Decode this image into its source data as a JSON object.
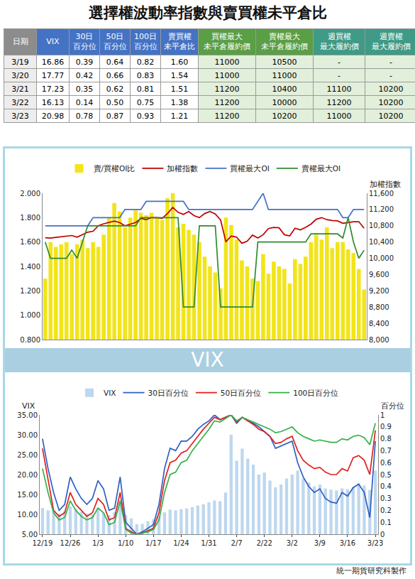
{
  "header": {
    "title": "選擇權波動率指數與賣買權未平倉比"
  },
  "table": {
    "columns": [
      [
        "日期"
      ],
      [
        "VIX"
      ],
      [
        "30日",
        "百分位"
      ],
      [
        "50日",
        "百分位"
      ],
      [
        "100日",
        "百分位"
      ],
      [
        "賣買權",
        "未平倉比"
      ],
      [
        "買權最大",
        "未平倉履約價"
      ],
      [
        "賣權最大",
        "未平倉履約價"
      ],
      [
        "週買權",
        "最大履約價"
      ],
      [
        "週賣權",
        "最大履約價"
      ]
    ],
    "rows": [
      [
        "3/19",
        "16.86",
        "0.39",
        "0.64",
        "0.82",
        "1.60",
        "11000",
        "10500",
        "-",
        "-"
      ],
      [
        "3/20",
        "17.77",
        "0.42",
        "0.66",
        "0.83",
        "1.54",
        "11000",
        "11000",
        "-",
        "-"
      ],
      [
        "3/21",
        "17.23",
        "0.35",
        "0.62",
        "0.81",
        "1.51",
        "11200",
        "10400",
        "11100",
        "10200"
      ],
      [
        "3/22",
        "16.13",
        "0.14",
        "0.50",
        "0.75",
        "1.38",
        "11200",
        "10000",
        "11200",
        "10200"
      ],
      [
        "3/23",
        "20.98",
        "0.78",
        "0.87",
        "0.93",
        "1.21",
        "11200",
        "10200",
        "11000",
        "10200"
      ]
    ]
  },
  "banner": "VIX",
  "footer": "統一期貨研究科製作",
  "chart_data": [
    {
      "type": "bar",
      "categories": [
        null,
        null,
        null,
        null,
        null,
        null,
        null,
        null,
        null,
        null,
        null,
        null,
        null,
        null,
        null,
        null,
        null,
        null,
        null,
        null,
        null,
        null,
        null,
        null,
        null,
        null,
        null,
        null,
        null,
        null,
        null,
        null,
        null,
        null,
        null,
        null,
        null,
        null,
        null,
        null,
        null,
        null,
        null,
        null,
        null,
        null,
        null,
        null,
        null,
        null,
        null,
        null,
        null,
        null,
        null,
        null,
        null,
        null,
        null,
        null,
        null
      ],
      "series": [
        {
          "name": "賣/買權OI比",
          "type": "bar",
          "color": "#f2e41a",
          "values": [
            1.3,
            1.6,
            1.56,
            1.58,
            1.6,
            1.5,
            1.58,
            1.62,
            1.55,
            1.6,
            1.56,
            1.66,
            1.8,
            1.92,
            1.85,
            1.72,
            1.8,
            1.86,
            1.84,
            1.82,
            1.84,
            1.8,
            1.78,
            1.96,
            2.0,
            1.72,
            1.75,
            1.7,
            1.66,
            1.6,
            1.48,
            1.4,
            1.35,
            1.22,
            1.8,
            1.74,
            1.62,
            1.45,
            1.4,
            1.3,
            1.28,
            1.5,
            1.34,
            1.44,
            1.4,
            1.38,
            1.26,
            1.46,
            1.42,
            1.48,
            1.6,
            1.66,
            1.62,
            1.72,
            1.55,
            1.6,
            1.6,
            1.54,
            1.51,
            1.38,
            1.21
          ]
        },
        {
          "name": "加權指數",
          "type": "line",
          "axis": "y2",
          "color": "#c00000",
          "values": [
            10506,
            10498,
            10515,
            10526,
            10550,
            10560,
            10520,
            10580,
            10642,
            10665,
            10801,
            10848,
            10879,
            10916,
            10879,
            10800,
            10840,
            10880,
            10980,
            10950,
            11000,
            11000,
            10982,
            11100,
            11253,
            11130,
            11080,
            11150,
            11050,
            11000,
            11100,
            11150,
            11090,
            10940,
            10404,
            10550,
            10520,
            10370,
            10420,
            10570,
            10500,
            10580,
            10730,
            10760,
            10750,
            10580,
            10550,
            10740,
            10700,
            10760,
            10840,
            10960,
            11000,
            10950,
            10930,
            10920,
            10860,
            10880,
            10900,
            10900,
            10740
          ]
        },
        {
          "name": "買權最大OI",
          "type": "line",
          "axis": "y2",
          "color": "#4472c4",
          "values": [
            10800,
            10800,
            10800,
            10800,
            10800,
            10800,
            10800,
            10800,
            10800,
            11000,
            11000,
            11000,
            11000,
            11000,
            11000,
            11200,
            11200,
            11200,
            11200,
            11400,
            11400,
            11400,
            11400,
            11400,
            11400,
            11400,
            11400,
            11200,
            11200,
            11200,
            11200,
            11200,
            11200,
            11200,
            11200,
            11200,
            11200,
            11200,
            11200,
            11200,
            11400,
            11600,
            11200,
            11200,
            11200,
            11200,
            11200,
            11200,
            11200,
            11200,
            11200,
            11200,
            11200,
            11200,
            11200,
            11200,
            11000,
            11000,
            11200,
            11200,
            11200
          ]
        },
        {
          "name": "賣權最大OI",
          "type": "line",
          "axis": "y2",
          "color": "#2e8b2e",
          "values": [
            10400,
            10000,
            10000,
            10000,
            10000,
            10200,
            10000,
            10400,
            10800,
            10800,
            10800,
            10800,
            10800,
            10800,
            10800,
            10800,
            10800,
            10800,
            11000,
            11000,
            11000,
            11000,
            11000,
            11000,
            11000,
            11000,
            8800,
            8800,
            8800,
            10800,
            10800,
            10800,
            10800,
            8800,
            8800,
            8800,
            8800,
            8800,
            8800,
            8800,
            10400,
            10400,
            10400,
            10400,
            10400,
            10400,
            10400,
            10400,
            10400,
            10400,
            10600,
            10600,
            10600,
            10600,
            10600,
            10600,
            10500,
            11000,
            10400,
            10000,
            10200
          ]
        }
      ],
      "ylim": [
        0.8,
        2.0
      ],
      "yticks": [
        {
          "value": 0.8,
          "label": "0.800"
        },
        {
          "value": 1.0,
          "label": "1.000"
        },
        {
          "value": 1.2,
          "label": "1.200"
        },
        {
          "value": 1.4,
          "label": "1.400"
        },
        {
          "value": 1.6,
          "label": "1.600"
        },
        {
          "value": 1.8,
          "label": "1.800"
        },
        {
          "value": 2.0,
          "label": "2.000"
        }
      ],
      "y2lim": [
        8000,
        11600
      ],
      "y2ticks": [
        {
          "value": 8000,
          "label": "8,000"
        },
        {
          "value": 8400,
          "label": "8,400"
        },
        {
          "value": 8800,
          "label": "8,800"
        },
        {
          "value": 9200,
          "label": "9,200"
        },
        {
          "value": 9600,
          "label": "9,600"
        },
        {
          "value": 10000,
          "label": "10,000"
        },
        {
          "value": 10400,
          "label": "10,400"
        },
        {
          "value": 10800,
          "label": "10,800"
        },
        {
          "value": 11200,
          "label": "11,200"
        },
        {
          "value": 11600,
          "label": "11,600"
        }
      ],
      "y2_label": "加權指數",
      "legend": "top",
      "grid": false
    },
    {
      "type": "bar",
      "categories": [
        "12/19",
        null,
        null,
        null,
        null,
        "12/26",
        null,
        null,
        null,
        null,
        "1/3",
        null,
        null,
        null,
        null,
        "1/10",
        null,
        null,
        null,
        null,
        "1/17",
        null,
        null,
        null,
        null,
        "1/24",
        null,
        null,
        null,
        null,
        "1/31",
        null,
        null,
        null,
        null,
        "2/7",
        null,
        null,
        null,
        null,
        "2/22",
        null,
        null,
        null,
        null,
        "3/2",
        null,
        null,
        null,
        null,
        "3/9",
        null,
        null,
        null,
        null,
        "3/16",
        null,
        null,
        null,
        null,
        "3/23"
      ],
      "series": [
        {
          "name": "VIX",
          "type": "bar",
          "color": "#bdd7ee",
          "values": [
            11.6,
            11.0,
            10.5,
            10.2,
            10.8,
            12.0,
            11.4,
            10.6,
            10.2,
            10.0,
            11.5,
            10.4,
            9.8,
            10.6,
            13.0,
            9.8,
            9.0,
            7.5,
            7.6,
            8.3,
            8.8,
            9.5,
            10.5,
            11.2,
            11.0,
            11.3,
            11.5,
            11.8,
            12.2,
            12.5,
            13.0,
            13.5,
            13.3,
            15.5,
            30.0,
            23.5,
            26.5,
            24.0,
            22.5,
            20.0,
            20.5,
            18.5,
            16.8,
            17.5,
            19.0,
            20.0,
            21.0,
            19.0,
            18.0,
            17.0,
            17.5,
            16.5,
            16.2,
            16.0,
            16.5,
            16.3,
            16.86,
            17.77,
            17.23,
            16.13,
            20.98
          ]
        },
        {
          "name": "30日百分位",
          "type": "line",
          "axis": "y2",
          "color": "#2f5fc4",
          "values": [
            0.8,
            0.55,
            0.35,
            0.2,
            0.25,
            0.48,
            0.38,
            0.3,
            0.25,
            0.3,
            0.45,
            0.38,
            0.2,
            0.22,
            0.48,
            0.1,
            0.05,
            0.0,
            0.02,
            0.05,
            0.08,
            0.25,
            0.55,
            0.72,
            0.7,
            0.78,
            0.78,
            0.82,
            0.88,
            0.92,
            0.95,
            1.0,
            0.96,
            0.98,
            1.0,
            0.93,
            0.98,
            0.95,
            0.93,
            0.9,
            0.86,
            0.82,
            0.72,
            0.74,
            0.76,
            0.78,
            0.6,
            0.48,
            0.4,
            0.35,
            0.38,
            0.3,
            0.27,
            0.26,
            0.35,
            0.32,
            0.39,
            0.42,
            0.35,
            0.14,
            0.78
          ]
        },
        {
          "name": "50日百分位",
          "type": "line",
          "axis": "y2",
          "color": "#e02020",
          "values": [
            0.72,
            0.45,
            0.2,
            0.15,
            0.18,
            0.35,
            0.25,
            0.2,
            0.15,
            0.18,
            0.3,
            0.25,
            0.12,
            0.14,
            0.35,
            0.05,
            0.02,
            0.0,
            0.01,
            0.03,
            0.05,
            0.18,
            0.45,
            0.6,
            0.62,
            0.68,
            0.7,
            0.76,
            0.82,
            0.88,
            0.93,
            0.98,
            0.96,
            0.98,
            1.0,
            0.94,
            0.98,
            0.95,
            0.92,
            0.88,
            0.86,
            0.82,
            0.76,
            0.77,
            0.8,
            0.82,
            0.7,
            0.62,
            0.58,
            0.55,
            0.56,
            0.52,
            0.5,
            0.5,
            0.55,
            0.53,
            0.64,
            0.66,
            0.62,
            0.5,
            0.87
          ]
        },
        {
          "name": "100日百分位",
          "type": "line",
          "axis": "y2",
          "color": "#33b14a",
          "values": [
            0.55,
            0.35,
            0.18,
            0.12,
            0.14,
            0.28,
            0.2,
            0.15,
            0.12,
            0.14,
            0.22,
            0.18,
            0.08,
            0.1,
            0.28,
            0.04,
            0.01,
            0.0,
            0.01,
            0.02,
            0.04,
            0.12,
            0.35,
            0.5,
            0.52,
            0.6,
            0.62,
            0.7,
            0.76,
            0.82,
            0.88,
            0.95,
            0.94,
            0.97,
            1.0,
            0.95,
            0.98,
            0.96,
            0.94,
            0.92,
            0.9,
            0.88,
            0.85,
            0.86,
            0.88,
            0.9,
            0.85,
            0.82,
            0.8,
            0.78,
            0.79,
            0.78,
            0.77,
            0.77,
            0.8,
            0.79,
            0.82,
            0.83,
            0.81,
            0.75,
            0.93
          ]
        }
      ],
      "ylim": [
        5,
        35
      ],
      "yticks": [
        {
          "value": 5,
          "label": "5.00"
        },
        {
          "value": 10,
          "label": "10.00"
        },
        {
          "value": 15,
          "label": "15.00"
        },
        {
          "value": 20,
          "label": "20.00"
        },
        {
          "value": 25,
          "label": "25.00"
        },
        {
          "value": 30,
          "label": "30.00"
        },
        {
          "value": 35,
          "label": "35.00"
        }
      ],
      "y2lim": [
        0,
        1
      ],
      "y2ticks": [
        0,
        0.1,
        0.2,
        0.3,
        0.4,
        0.5,
        0.6,
        0.7,
        0.8,
        0.9,
        1
      ],
      "y_label": "VIX",
      "y2_label": "百分位",
      "legend": "top",
      "grid": false
    }
  ]
}
